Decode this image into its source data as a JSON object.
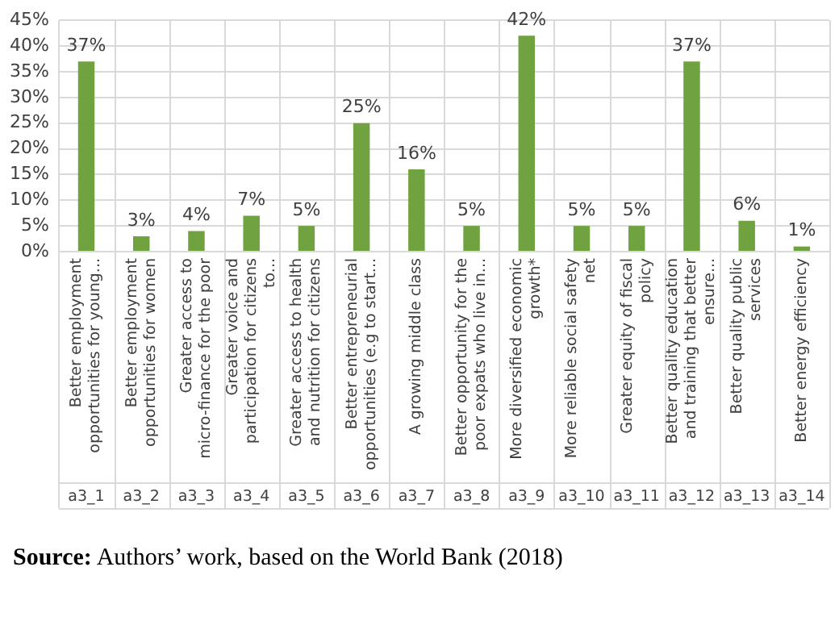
{
  "chart_data": {
    "type": "bar",
    "categories": [
      "Better employment opportunities for young...",
      "Better employment opportunities for women",
      "Greater access to micro-finance for the poor",
      "Greater voice and participation for citizens to...",
      "Greater access to health and nutrition for citizens",
      "Better entrepreneurial opportunities (e.g to start...",
      "A growing middle class",
      "Better opportunity for the poor expats who live in...",
      "More diversified economic growth*",
      "More reliable social safety net",
      "Greater equity of fiscal policy",
      "Better quality education and training that better ensure...",
      "Better quality public services",
      "Better energy efficiency"
    ],
    "values": [
      37,
      3,
      4,
      7,
      5,
      25,
      16,
      5,
      42,
      5,
      5,
      37,
      6,
      1
    ],
    "value_labels": [
      "37%",
      "3%",
      "4%",
      "7%",
      "5%",
      "25%",
      "16%",
      "5%",
      "42%",
      "5%",
      "5%",
      "37%",
      "6%",
      "1%"
    ],
    "color": "#70a23f",
    "ylim": [
      0,
      45
    ],
    "yticks": [
      {
        "value": 0,
        "label": "0%"
      },
      {
        "value": 5,
        "label": "5%"
      },
      {
        "value": 10,
        "label": "10%"
      },
      {
        "value": 15,
        "label": "15%"
      },
      {
        "value": 20,
        "label": "20%"
      },
      {
        "value": 25,
        "label": "25%"
      },
      {
        "value": 30,
        "label": "30%"
      },
      {
        "value": 35,
        "label": "35%"
      },
      {
        "value": 40,
        "label": "40%"
      },
      {
        "value": 45,
        "label": "45%"
      }
    ],
    "grid": true,
    "annotations": [
      "a3_1",
      "a3_2",
      "a3_3",
      "a3_4",
      "a3_5",
      "a3_6",
      "a3_7",
      "a3_8",
      "a3_9",
      "a3_10",
      "a3_11",
      "a3_12",
      "a3_13",
      "a3_14",
      "Source: Authors’ work, based on the World Bank (2018)"
    ]
  }
}
